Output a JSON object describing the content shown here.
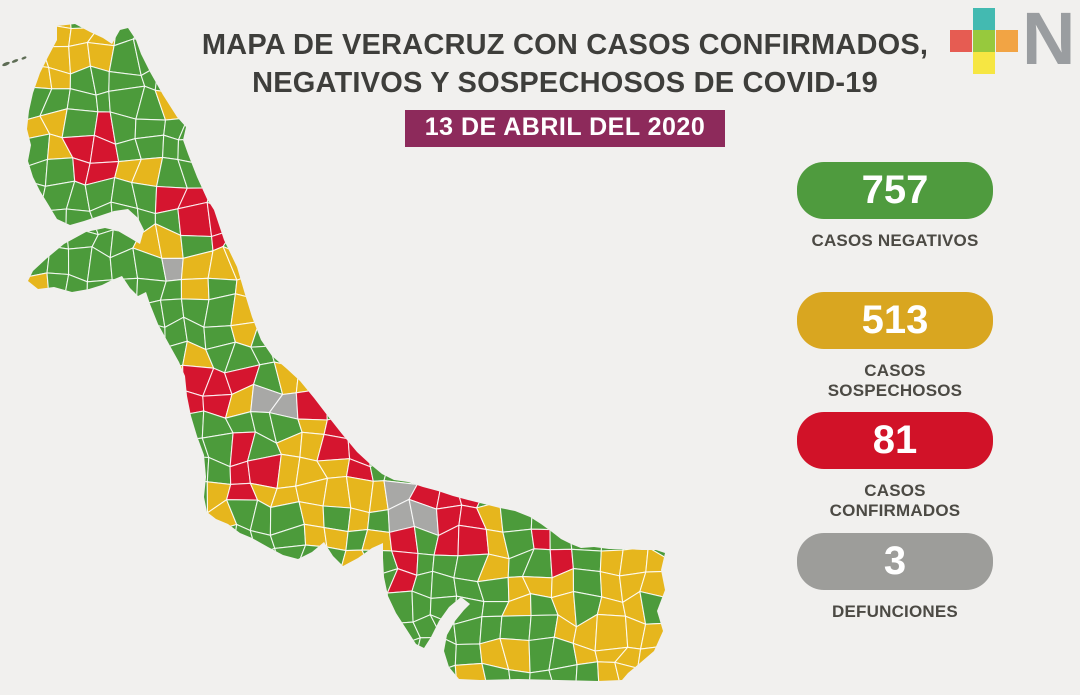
{
  "header": {
    "title_line1": "MAPA DE VERACRUZ CON CASOS CONFIRMADOS,",
    "title_line2": "NEGATIVOS Y SOSPECHOSOS DE COVID-19",
    "date_badge": "13 DE ABRIL DEL 2020",
    "date_badge_color": "#8D2A5B"
  },
  "logo": {
    "letter": "N",
    "letter_color": "#9A9DA0",
    "plus_colors": {
      "top": "#43BAB1",
      "left": "#E65C52",
      "center": "#97C93D",
      "right": "#F2A444",
      "bottom": "#F6E642"
    }
  },
  "stats": [
    {
      "value": "757",
      "label": "CASOS NEGATIVOS",
      "color": "#4F9B3E"
    },
    {
      "value": "513",
      "label": "CASOS SOSPECHOSOS",
      "color": "#D9A620"
    },
    {
      "value": "81",
      "label": "CASOS CONFIRMADOS",
      "color": "#D11228"
    },
    {
      "value": "3",
      "label": "DEFUNCIONES",
      "color": "#9D9D9A"
    }
  ],
  "map": {
    "region": "Veracruz",
    "categories": [
      {
        "name": "casos negativos",
        "color": "#4C9B3B"
      },
      {
        "name": "casos sospechosos",
        "color": "#E6B61D"
      },
      {
        "name": "casos confirmados",
        "color": "#D5152F"
      },
      {
        "name": "defunciones",
        "color": "#A8A8A6"
      }
    ],
    "border_color": "#FFFFFF",
    "background": "#F1F0EE"
  }
}
